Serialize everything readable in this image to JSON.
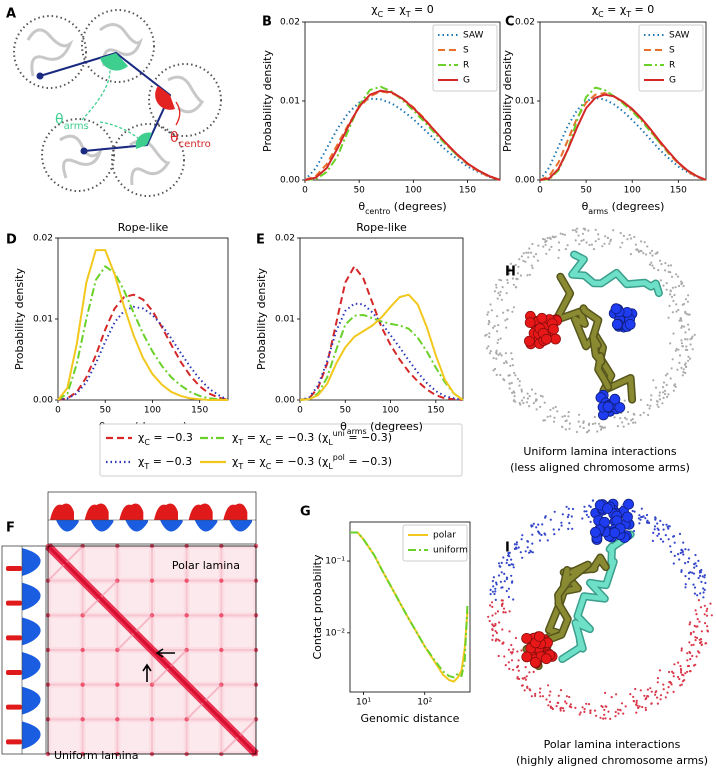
{
  "panels": [
    "A",
    "B",
    "C",
    "D",
    "E",
    "F",
    "G",
    "H",
    "I"
  ],
  "diagram": {
    "arms": "θarms",
    "centro": "θcentro"
  },
  "heatmap": {
    "top_label": "Polar lamina",
    "bottom_label": "Uniform lamina"
  },
  "renders": [
    {
      "caption": [
        "Uniform lamina interactions",
        "(less aligned chromosome arms)"
      ]
    },
    {
      "caption": [
        "Polar lamina interactions",
        "(highly aligned chromosome arms)"
      ]
    }
  ],
  "chart_data": [
    {
      "type": "line",
      "title": "χC = χT = 0",
      "xlabel": "θcentro (degrees)",
      "ylabel": "Probability density",
      "x": [
        0,
        10,
        20,
        30,
        40,
        50,
        60,
        70,
        80,
        90,
        100,
        110,
        120,
        130,
        140,
        150,
        160,
        170,
        180
      ],
      "xlim": [
        0,
        180
      ],
      "ylim": [
        0,
        0.02
      ],
      "xticks": [
        0,
        50,
        100,
        150
      ],
      "yticks": [
        {
          "value": 0,
          "label": "0.00"
        },
        0.01,
        0.02
      ],
      "legend": "upper right",
      "series": [
        {
          "name": "SAW",
          "color": "#1f77b4",
          "linestyle": "dotted",
          "values": [
            0,
            0.0015,
            0.004,
            0.0065,
            0.0085,
            0.0098,
            0.0103,
            0.0102,
            0.0097,
            0.0088,
            0.0077,
            0.0064,
            0.0051,
            0.0038,
            0.0027,
            0.0017,
            0.001,
            0.0004,
            0
          ]
        },
        {
          "name": "S",
          "color": "#e8702a",
          "linestyle": "dashed",
          "values": [
            0,
            0.0005,
            0.002,
            0.0045,
            0.007,
            0.0092,
            0.0106,
            0.0112,
            0.011,
            0.0103,
            0.0092,
            0.0078,
            0.0062,
            0.0046,
            0.0032,
            0.002,
            0.0011,
            0.0004,
            0
          ]
        },
        {
          "name": "R",
          "color": "#6ad12a",
          "linestyle": "dashdot",
          "values": [
            0,
            0.0001,
            0.001,
            0.003,
            0.0063,
            0.0095,
            0.0114,
            0.0118,
            0.0112,
            0.0101,
            0.0088,
            0.0074,
            0.0059,
            0.0045,
            0.0032,
            0.0021,
            0.0012,
            0.0005,
            0
          ]
        },
        {
          "name": "G",
          "color": "#d62728",
          "linestyle": "solid",
          "values": [
            0,
            0.0003,
            0.0015,
            0.004,
            0.0068,
            0.0093,
            0.0108,
            0.0113,
            0.0111,
            0.0103,
            0.0091,
            0.0077,
            0.0062,
            0.0047,
            0.0033,
            0.0021,
            0.0012,
            0.0005,
            0
          ]
        }
      ]
    },
    {
      "type": "line",
      "title": "χC = χT = 0",
      "xlabel": "θarms (degrees)",
      "ylabel": "Probability density",
      "x": [
        0,
        10,
        20,
        30,
        40,
        50,
        60,
        70,
        80,
        90,
        100,
        110,
        120,
        130,
        140,
        150,
        160,
        170,
        180
      ],
      "xlim": [
        0,
        180
      ],
      "ylim": [
        0,
        0.02
      ],
      "xticks": [
        0,
        50,
        100,
        150
      ],
      "yticks": [
        {
          "value": 0,
          "label": "0.00"
        },
        0.01,
        0.02
      ],
      "legend": "upper right",
      "series": [
        {
          "name": "SAW",
          "color": "#1f77b4",
          "linestyle": "dotted",
          "values": [
            0,
            0.0016,
            0.0042,
            0.0068,
            0.0088,
            0.01,
            0.0104,
            0.0102,
            0.0096,
            0.0087,
            0.0076,
            0.0064,
            0.0051,
            0.0038,
            0.0027,
            0.0017,
            0.001,
            0.0004,
            0
          ]
        },
        {
          "name": "S",
          "color": "#e8702a",
          "linestyle": "dashed",
          "values": [
            0,
            0.0005,
            0.0022,
            0.005,
            0.0078,
            0.0098,
            0.0108,
            0.011,
            0.0106,
            0.0099,
            0.0089,
            0.0077,
            0.0062,
            0.0047,
            0.0033,
            0.0021,
            0.0011,
            0.0004,
            0
          ]
        },
        {
          "name": "R",
          "color": "#6ad12a",
          "linestyle": "dashdot",
          "values": [
            0,
            0.0001,
            0.0012,
            0.0038,
            0.0075,
            0.0105,
            0.0117,
            0.0114,
            0.0106,
            0.0097,
            0.0087,
            0.0075,
            0.0061,
            0.0047,
            0.0034,
            0.0022,
            0.0012,
            0.0005,
            0
          ]
        },
        {
          "name": "G",
          "color": "#d62728",
          "linestyle": "solid",
          "values": [
            0,
            0.0002,
            0.0014,
            0.0038,
            0.0066,
            0.0091,
            0.0104,
            0.0108,
            0.0106,
            0.0099,
            0.009,
            0.0078,
            0.0064,
            0.0049,
            0.0035,
            0.0022,
            0.0012,
            0.0005,
            0
          ]
        }
      ]
    },
    {
      "type": "line",
      "title": "Rope-like",
      "xlabel": "θcentro (degrees)",
      "ylabel": "Probability density",
      "x": [
        0,
        10,
        20,
        30,
        40,
        50,
        60,
        70,
        80,
        90,
        100,
        110,
        120,
        130,
        140,
        150,
        160,
        170,
        180
      ],
      "xlim": [
        0,
        180
      ],
      "ylim": [
        0,
        0.02
      ],
      "xticks": [
        0,
        50,
        100,
        150
      ],
      "yticks": [
        {
          "value": 0,
          "label": "0.00"
        },
        0.01,
        0.02
      ],
      "legend": "below",
      "series": [
        {
          "name": "χC = −0.3",
          "color": "#d62728",
          "linestyle": "dashed",
          "values": [
            0,
            0.0002,
            0.001,
            0.0028,
            0.0055,
            0.0087,
            0.0113,
            0.0127,
            0.013,
            0.0124,
            0.011,
            0.009,
            0.0068,
            0.0047,
            0.003,
            0.0017,
            0.0008,
            0.0003,
            0
          ]
        },
        {
          "name": "χT = −0.3",
          "color": "#2b35b8",
          "linestyle": "dotted",
          "values": [
            0,
            0.0002,
            0.0008,
            0.0022,
            0.0045,
            0.0072,
            0.0096,
            0.011,
            0.0115,
            0.0113,
            0.0105,
            0.0092,
            0.0076,
            0.0058,
            0.0041,
            0.0026,
            0.0014,
            0.0006,
            0
          ]
        },
        {
          "name": "χT = χC = −0.3 (χLuni = −0.3)",
          "color": "#6ad12a",
          "linestyle": "dashdot",
          "values": [
            0,
            0.0008,
            0.0045,
            0.01,
            0.0148,
            0.0165,
            0.0157,
            0.0135,
            0.0108,
            0.0082,
            0.006,
            0.0042,
            0.0028,
            0.0018,
            0.001,
            0.0005,
            0.0002,
            0.0001,
            0
          ]
        },
        {
          "name": "χT = χC = −0.3 (χLpol = −0.3)",
          "color": "#f2c81e",
          "linestyle": "solid",
          "values": [
            0,
            0.0015,
            0.007,
            0.0145,
            0.0185,
            0.0185,
            0.0155,
            0.0115,
            0.008,
            0.0052,
            0.0032,
            0.0019,
            0.001,
            0.0005,
            0.0002,
            0.0001,
            0,
            0,
            0
          ]
        }
      ]
    },
    {
      "type": "line",
      "title": "Rope-like",
      "xlabel": "θarms (degrees)",
      "ylabel": "Probability density",
      "x": [
        0,
        10,
        20,
        30,
        40,
        50,
        60,
        70,
        80,
        90,
        100,
        110,
        120,
        130,
        140,
        150,
        160,
        170,
        180
      ],
      "xlim": [
        0,
        180
      ],
      "ylim": [
        0,
        0.02
      ],
      "xticks": [
        0,
        50,
        100,
        150
      ],
      "yticks": [
        {
          "value": 0,
          "label": "0.00"
        },
        0.01,
        0.02
      ],
      "series": [
        {
          "color": "#d62728",
          "linestyle": "dashed",
          "values": [
            0,
            0.0002,
            0.0015,
            0.0045,
            0.0095,
            0.0145,
            0.0165,
            0.015,
            0.012,
            0.009,
            0.0068,
            0.005,
            0.0035,
            0.0023,
            0.0013,
            0.0006,
            0.0002,
            0.0001,
            0
          ]
        },
        {
          "color": "#2b35b8",
          "linestyle": "dotted",
          "values": [
            0,
            0.0003,
            0.0018,
            0.0048,
            0.0085,
            0.011,
            0.0119,
            0.0118,
            0.0108,
            0.0095,
            0.008,
            0.0065,
            0.0049,
            0.0034,
            0.0021,
            0.0011,
            0.0005,
            0.0002,
            0
          ]
        },
        {
          "color": "#6ad12a",
          "linestyle": "dashdot",
          "values": [
            0,
            0.0001,
            0.0008,
            0.0028,
            0.0062,
            0.0093,
            0.0104,
            0.0105,
            0.0101,
            0.0097,
            0.0094,
            0.0092,
            0.0088,
            0.0077,
            0.006,
            0.004,
            0.0022,
            0.0008,
            0
          ]
        },
        {
          "color": "#f2c81e",
          "linestyle": "solid",
          "values": [
            0,
            0.0001,
            0.0006,
            0.002,
            0.0045,
            0.0065,
            0.0078,
            0.0085,
            0.0092,
            0.0102,
            0.0115,
            0.0127,
            0.013,
            0.0118,
            0.009,
            0.0055,
            0.0025,
            0.0008,
            0
          ]
        }
      ]
    },
    {
      "type": "line",
      "xlabel": "Genomic distance",
      "ylabel": "Contact probability",
      "xscale": "log",
      "yscale": "log",
      "x": [
        6,
        8,
        10,
        15,
        20,
        30,
        50,
        70,
        100,
        150,
        200,
        250,
        300,
        350,
        400,
        450,
        500
      ],
      "xlim": [
        6,
        550
      ],
      "ylim": [
        0.0015,
        0.35
      ],
      "xticks": [
        {
          "value": 10,
          "label": "10¹"
        },
        {
          "value": 100,
          "label": "10²"
        }
      ],
      "yticks": [
        {
          "value": 0.01,
          "label": "10⁻²"
        },
        {
          "value": 0.1,
          "label": "10⁻¹"
        }
      ],
      "legend": "upper right",
      "series": [
        {
          "name": "polar",
          "color": "#f2c81e",
          "linestyle": "solid",
          "values": [
            0.25,
            0.25,
            0.2,
            0.12,
            0.075,
            0.04,
            0.018,
            0.011,
            0.0065,
            0.0038,
            0.0026,
            0.0022,
            0.0021,
            0.0024,
            0.003,
            0.006,
            0.02
          ]
        },
        {
          "name": "uniform",
          "color": "#6ad12a",
          "linestyle": "dashdot",
          "values": [
            0.25,
            0.25,
            0.2,
            0.12,
            0.075,
            0.04,
            0.018,
            0.011,
            0.0065,
            0.004,
            0.0029,
            0.0025,
            0.0024,
            0.0027,
            0.0025,
            0.004,
            0.025
          ]
        }
      ]
    }
  ]
}
